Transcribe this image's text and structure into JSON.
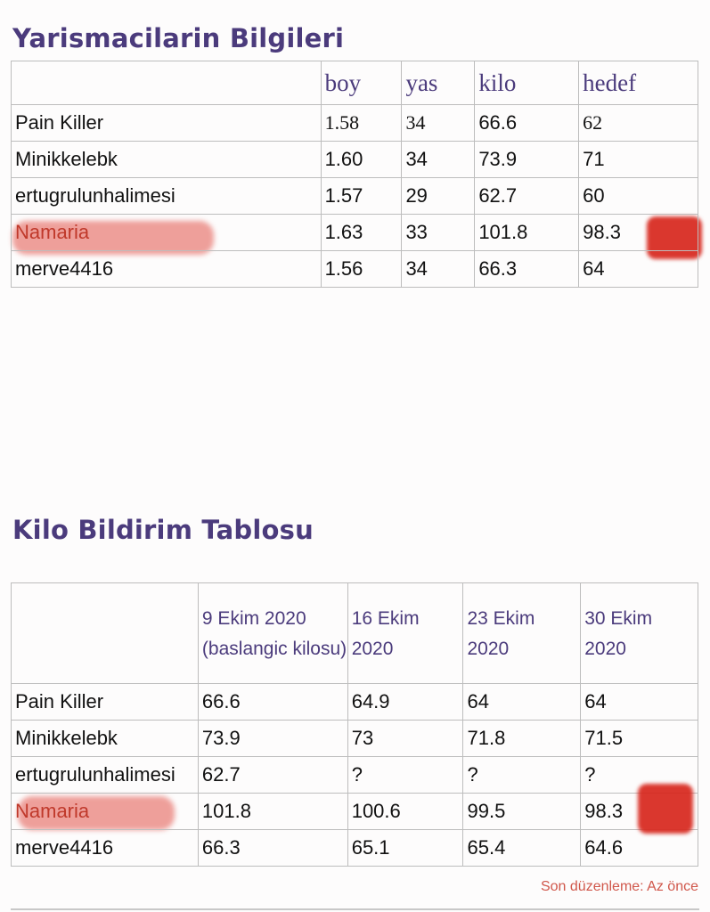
{
  "section1": {
    "title": "Yarismacilarin Bilgileri",
    "headers": [
      "",
      "boy",
      "yas",
      "kilo",
      "hedef"
    ],
    "rows": [
      [
        "Pain Killer",
        "1.58",
        "34",
        "66.6",
        "62"
      ],
      [
        "Minikkelebk",
        "1.60",
        "34",
        "73.9",
        "71"
      ],
      [
        "ertugrulunhalimesi",
        "1.57",
        "29",
        "62.7",
        "60"
      ],
      [
        "Namaria",
        "1.63",
        "33",
        "101.8",
        "98.3"
      ],
      [
        "merve4416",
        "1.56",
        "34",
        "66.3",
        "64"
      ]
    ]
  },
  "section2": {
    "title": "Kilo Bildirim Tablosu",
    "headers": [
      "",
      "9 Ekim 2020 (baslangic kilosu)",
      "16 Ekim 2020",
      "23 Ekim 2020",
      "30 Ekim 2020"
    ],
    "rows": [
      [
        "Pain Killer",
        "66.6",
        "64.9",
        "64",
        "64"
      ],
      [
        "Minikkelebk",
        "73.9",
        "73",
        "71.8",
        "71.5"
      ],
      [
        "ertugrulunhalimesi",
        "62.7",
        "?",
        "?",
        "?"
      ],
      [
        "Namaria",
        "101.8",
        "100.6",
        "99.5",
        "98.3"
      ],
      [
        "merve4416",
        "66.3",
        "65.1",
        "65.4",
        "64.6"
      ]
    ]
  },
  "footer": "Son düzenleme: Az önce",
  "colors": {
    "heading": "#4b3b7c",
    "highlight": "#e25248",
    "footer": "#d0574b"
  }
}
